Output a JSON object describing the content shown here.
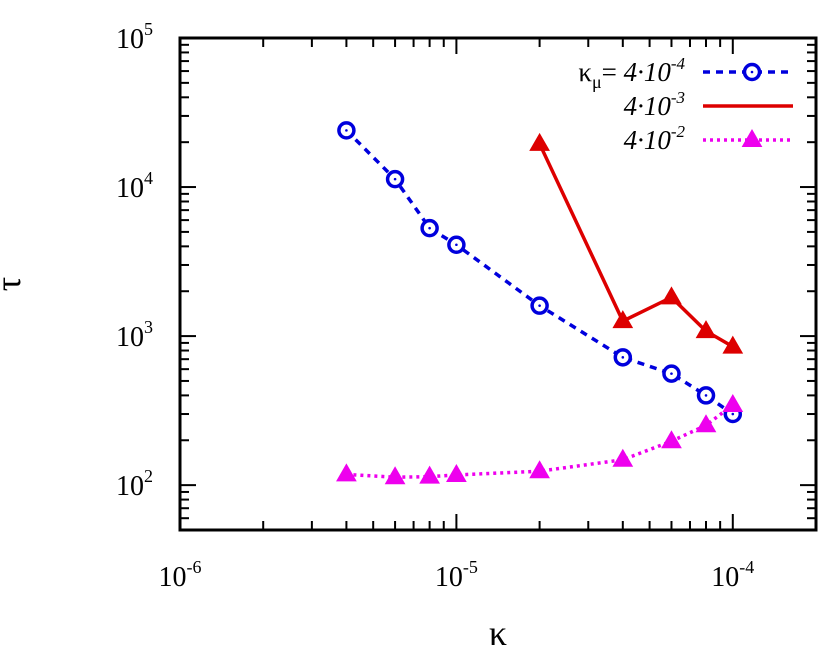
{
  "chart_data": {
    "type": "line",
    "xlabel": "κ",
    "ylabel": "τ",
    "x_scale": "log",
    "y_scale": "log",
    "xlim": [
      1e-06,
      0.0002
    ],
    "ylim": [
      50,
      100000
    ],
    "x_ticks": [
      {
        "value": 1e-06,
        "base": "10",
        "exp": "-6"
      },
      {
        "value": 1e-05,
        "base": "10",
        "exp": "-5"
      },
      {
        "value": 0.0001,
        "base": "10",
        "exp": "-4"
      }
    ],
    "y_ticks": [
      {
        "value": 100,
        "base": "10",
        "exp": "2"
      },
      {
        "value": 1000,
        "base": "10",
        "exp": "3"
      },
      {
        "value": 10000,
        "base": "10",
        "exp": "4"
      },
      {
        "value": 100000,
        "base": "10",
        "exp": "5"
      }
    ],
    "grid": false,
    "legend_position": "top-right",
    "legend_prefix": {
      "symbol": "κ",
      "sub": "μ",
      "eq": "="
    },
    "series": [
      {
        "label_mant": "4·10",
        "label_exp": "-4",
        "color": "#0000dd",
        "style": "dashed",
        "marker": "circle",
        "x": [
          4e-06,
          6e-06,
          8e-06,
          1e-05,
          2e-05,
          4e-05,
          6e-05,
          8e-05,
          0.0001
        ],
        "y": [
          24000,
          11300,
          5300,
          4100,
          1600,
          720,
          560,
          400,
          300
        ]
      },
      {
        "label_mant": "4·10",
        "label_exp": "-3",
        "color": "#dd0000",
        "style": "solid",
        "marker": "triangle",
        "x": [
          2e-05,
          4e-05,
          6e-05,
          8e-05,
          0.0001
        ],
        "y": [
          19500,
          1260,
          1820,
          1080,
          850
        ]
      },
      {
        "label_mant": "4·10",
        "label_exp": "-2",
        "color": "#ee00ee",
        "style": "dotted",
        "marker": "triangle",
        "x": [
          4e-06,
          6e-06,
          8e-06,
          1e-05,
          2e-05,
          4e-05,
          6e-05,
          8e-05,
          0.0001
        ],
        "y": [
          118,
          113,
          114,
          117,
          124,
          148,
          197,
          252,
          345
        ]
      }
    ]
  }
}
